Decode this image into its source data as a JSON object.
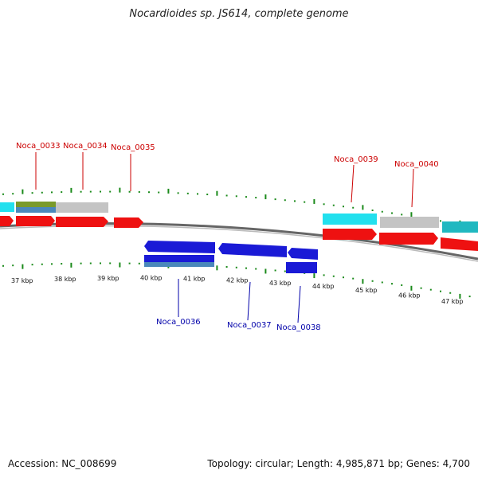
{
  "title": "Nocardioides sp. JS614, complete genome",
  "accession": "Accession: NC_008699",
  "summary": "Topology: circular; Length: 4,985,871 bp; Genes: 4,700",
  "kbp_labels": [
    "37 kbp",
    "38 kbp",
    "39 kbp",
    "40 kbp",
    "41 kbp",
    "42 kbp",
    "43 kbp",
    "44 kbp",
    "45 kbp",
    "46 kbp",
    "47 kbp"
  ],
  "genes_plus": [
    {
      "label": "Noca_0033",
      "color": "#cc0000"
    },
    {
      "label": "Noca_0034",
      "color": "#cc0000"
    },
    {
      "label": "Noca_0035",
      "color": "#cc0000"
    },
    {
      "label": "Noca_0039",
      "color": "#cc0000"
    },
    {
      "label": "Noca_0040",
      "color": "#cc0000"
    }
  ],
  "genes_minus": [
    {
      "label": "Noca_0036",
      "color": "#0000aa"
    },
    {
      "label": "Noca_0037",
      "color": "#0000aa"
    },
    {
      "label": "Noca_0038",
      "color": "#0000aa"
    }
  ],
  "colors": {
    "forward_gene": "#ee1111",
    "reverse_gene": "#1a1ad6",
    "tick": "#1a8a1a",
    "backbone": "#777777",
    "cyan": "#22e0ee",
    "gray": "#bdbdbd",
    "olive": "#7a9a2a",
    "steel": "#4a88bb",
    "teal": "#20b8c0"
  }
}
